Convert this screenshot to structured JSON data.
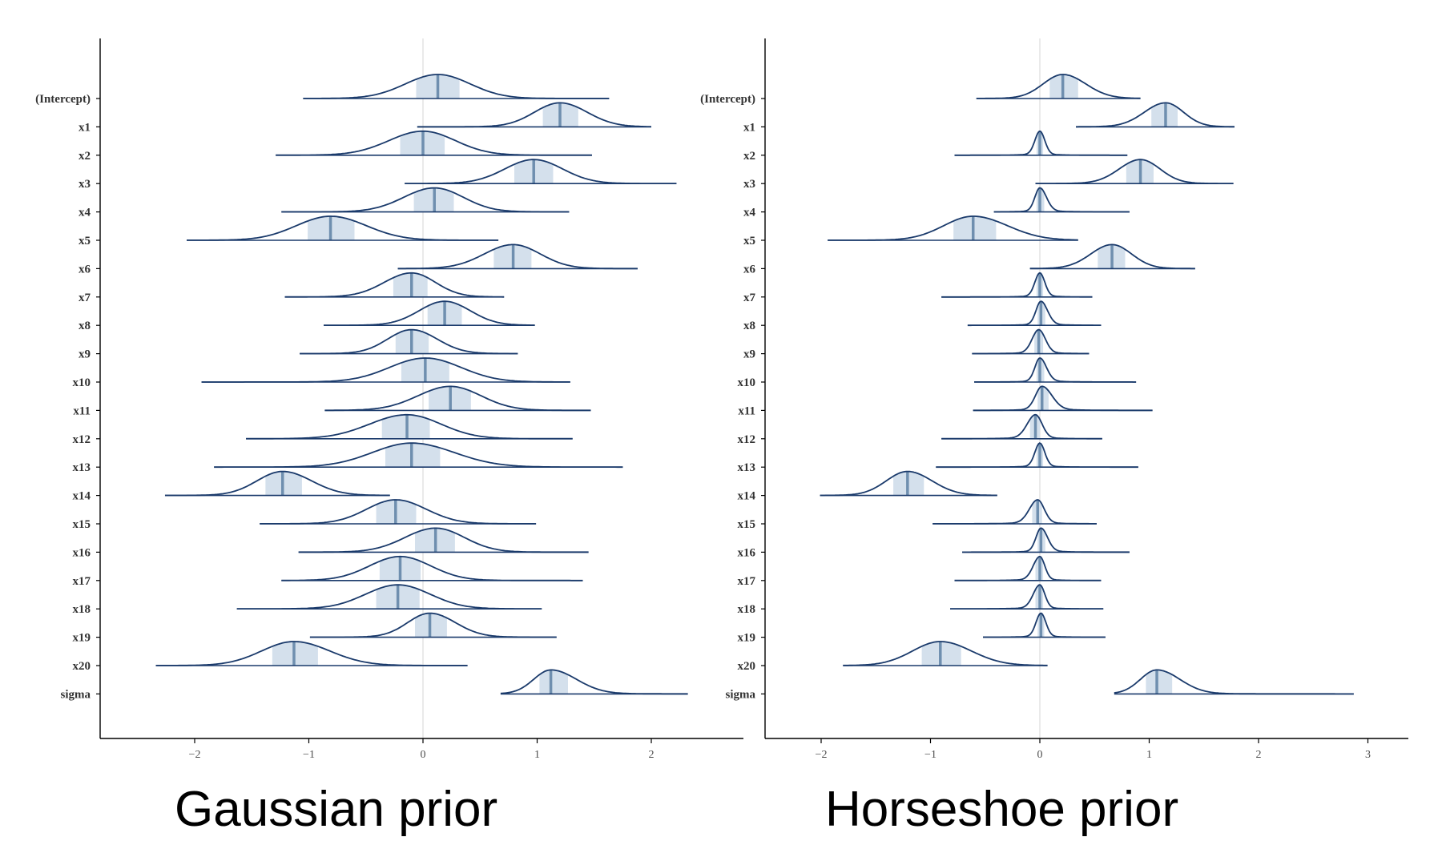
{
  "chart_data": [
    {
      "type": "area",
      "kind": "posterior-density-ridgeline",
      "caption": "Gaussian prior",
      "categories": [
        "(Intercept)",
        "x1",
        "x2",
        "x3",
        "x4",
        "x5",
        "x6",
        "x7",
        "x8",
        "x9",
        "x10",
        "x11",
        "x12",
        "x13",
        "x14",
        "x15",
        "x16",
        "x17",
        "x18",
        "x19",
        "x20",
        "sigma"
      ],
      "xlim": [
        -2.8,
        2.8
      ],
      "xticks": [
        -2,
        -1,
        0,
        1,
        2
      ],
      "xtick_labels": [
        "−2",
        "−1",
        "0",
        "1",
        "2"
      ],
      "reference_line": 0,
      "intervals": [
        {
          "median": 0.13,
          "lo": -0.06,
          "hi": 0.32,
          "min": -1.05,
          "max": 1.63
        },
        {
          "median": 1.2,
          "lo": 1.05,
          "hi": 1.36,
          "min": -0.05,
          "max": 2.0
        },
        {
          "median": 0.0,
          "lo": -0.2,
          "hi": 0.19,
          "min": -1.29,
          "max": 1.48
        },
        {
          "median": 0.97,
          "lo": 0.8,
          "hi": 1.14,
          "min": -0.16,
          "max": 2.22
        },
        {
          "median": 0.1,
          "lo": -0.08,
          "hi": 0.27,
          "min": -1.24,
          "max": 1.28
        },
        {
          "median": -0.81,
          "lo": -1.01,
          "hi": -0.6,
          "min": -2.07,
          "max": 0.66
        },
        {
          "median": 0.79,
          "lo": 0.62,
          "hi": 0.95,
          "min": -0.22,
          "max": 1.88
        },
        {
          "median": -0.1,
          "lo": -0.26,
          "hi": 0.04,
          "min": -1.21,
          "max": 0.71
        },
        {
          "median": 0.19,
          "lo": 0.04,
          "hi": 0.34,
          "min": -0.87,
          "max": 0.98
        },
        {
          "median": -0.1,
          "lo": -0.24,
          "hi": 0.05,
          "min": -1.08,
          "max": 0.83
        },
        {
          "median": 0.02,
          "lo": -0.19,
          "hi": 0.23,
          "min": -1.94,
          "max": 1.29
        },
        {
          "median": 0.24,
          "lo": 0.05,
          "hi": 0.42,
          "min": -0.86,
          "max": 1.47
        },
        {
          "median": -0.14,
          "lo": -0.36,
          "hi": 0.06,
          "min": -1.55,
          "max": 1.31
        },
        {
          "median": -0.1,
          "lo": -0.33,
          "hi": 0.15,
          "min": -1.83,
          "max": 1.75
        },
        {
          "median": -1.23,
          "lo": -1.38,
          "hi": -1.06,
          "min": -2.26,
          "max": -0.29
        },
        {
          "median": -0.24,
          "lo": -0.41,
          "hi": -0.06,
          "min": -1.43,
          "max": 0.99
        },
        {
          "median": 0.11,
          "lo": -0.07,
          "hi": 0.28,
          "min": -1.09,
          "max": 1.45
        },
        {
          "median": -0.2,
          "lo": -0.38,
          "hi": -0.02,
          "min": -1.24,
          "max": 1.4
        },
        {
          "median": -0.22,
          "lo": -0.41,
          "hi": -0.03,
          "min": -1.63,
          "max": 1.04
        },
        {
          "median": 0.06,
          "lo": -0.07,
          "hi": 0.21,
          "min": -0.99,
          "max": 1.17
        },
        {
          "median": -1.13,
          "lo": -1.32,
          "hi": -0.92,
          "min": -2.34,
          "max": 0.39
        },
        {
          "median": 1.12,
          "lo": 1.02,
          "hi": 1.27,
          "min": 0.68,
          "max": 2.32
        }
      ]
    },
    {
      "type": "area",
      "kind": "posterior-density-ridgeline",
      "caption": "Horseshoe prior",
      "categories": [
        "(Intercept)",
        "x1",
        "x2",
        "x3",
        "x4",
        "x5",
        "x6",
        "x7",
        "x8",
        "x9",
        "x10",
        "x11",
        "x12",
        "x13",
        "x14",
        "x15",
        "x16",
        "x17",
        "x18",
        "x19",
        "x20",
        "sigma"
      ],
      "xlim": [
        -2.5,
        3.4
      ],
      "xticks": [
        -2,
        -1,
        0,
        1,
        2,
        3
      ],
      "xtick_labels": [
        "−2",
        "−1",
        "0",
        "1",
        "2",
        "3"
      ],
      "reference_line": 0,
      "intervals": [
        {
          "median": 0.21,
          "lo": 0.09,
          "hi": 0.35,
          "min": -0.58,
          "max": 0.92
        },
        {
          "median": 1.15,
          "lo": 1.02,
          "hi": 1.26,
          "min": 0.33,
          "max": 1.78
        },
        {
          "median": 0.0,
          "lo": -0.03,
          "hi": 0.03,
          "min": -0.78,
          "max": 0.8
        },
        {
          "median": 0.92,
          "lo": 0.79,
          "hi": 1.04,
          "min": -0.04,
          "max": 1.77
        },
        {
          "median": 0.0,
          "lo": -0.03,
          "hi": 0.04,
          "min": -0.42,
          "max": 0.82
        },
        {
          "median": -0.61,
          "lo": -0.79,
          "hi": -0.4,
          "min": -1.94,
          "max": 0.35
        },
        {
          "median": 0.66,
          "lo": 0.53,
          "hi": 0.78,
          "min": -0.09,
          "max": 1.42
        },
        {
          "median": 0.0,
          "lo": -0.03,
          "hi": 0.03,
          "min": -0.9,
          "max": 0.48
        },
        {
          "median": 0.01,
          "lo": -0.02,
          "hi": 0.05,
          "min": -0.66,
          "max": 0.56
        },
        {
          "median": -0.01,
          "lo": -0.05,
          "hi": 0.03,
          "min": -0.62,
          "max": 0.45
        },
        {
          "median": 0.0,
          "lo": -0.03,
          "hi": 0.04,
          "min": -0.6,
          "max": 0.88
        },
        {
          "median": 0.02,
          "lo": -0.02,
          "hi": 0.08,
          "min": -0.61,
          "max": 1.03
        },
        {
          "median": -0.04,
          "lo": -0.09,
          "hi": 0.0,
          "min": -0.9,
          "max": 0.57
        },
        {
          "median": 0.0,
          "lo": -0.03,
          "hi": 0.03,
          "min": -0.95,
          "max": 0.9
        },
        {
          "median": -1.21,
          "lo": -1.34,
          "hi": -1.06,
          "min": -2.01,
          "max": -0.39
        },
        {
          "median": -0.02,
          "lo": -0.07,
          "hi": 0.02,
          "min": -0.98,
          "max": 0.52
        },
        {
          "median": 0.01,
          "lo": -0.02,
          "hi": 0.05,
          "min": -0.71,
          "max": 0.82
        },
        {
          "median": 0.0,
          "lo": -0.04,
          "hi": 0.03,
          "min": -0.78,
          "max": 0.56
        },
        {
          "median": 0.0,
          "lo": -0.04,
          "hi": 0.03,
          "min": -0.82,
          "max": 0.58
        },
        {
          "median": 0.01,
          "lo": -0.02,
          "hi": 0.04,
          "min": -0.52,
          "max": 0.6
        },
        {
          "median": -0.91,
          "lo": -1.08,
          "hi": -0.72,
          "min": -1.8,
          "max": 0.07
        },
        {
          "median": 1.07,
          "lo": 0.97,
          "hi": 1.21,
          "min": 0.68,
          "max": 2.87
        }
      ]
    }
  ],
  "colors": {
    "density_line": "#1a3a6b",
    "interval_fill": "#d4e0ec",
    "median_line": "#6f8faf",
    "axis": "#000000",
    "reference_line": "#dcdcdc"
  }
}
